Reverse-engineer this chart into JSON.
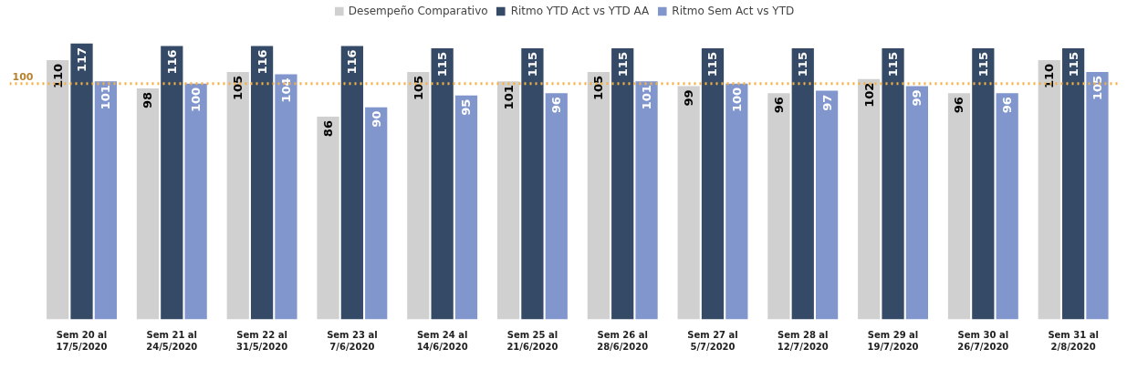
{
  "chart_data": {
    "type": "bar",
    "categories": [
      "Sem 20 al\n17/5/2020",
      "Sem 21 al\n24/5/2020",
      "Sem 22 al\n31/5/2020",
      "Sem 23 al\n7/6/2020",
      "Sem 24 al\n14/6/2020",
      "Sem 25 al\n21/6/2020",
      "Sem 26 al\n28/6/2020",
      "Sem 27 al\n5/7/2020",
      "Sem 28 al\n12/7/2020",
      "Sem 29 al\n19/7/2020",
      "Sem 30 al\n26/7/2020",
      "Sem 31 al\n2/8/2020"
    ],
    "series": [
      {
        "name": "Desempeño Comparativo",
        "color": "#d0d0d0",
        "values": [
          110,
          98,
          105,
          86,
          105,
          101,
          105,
          99,
          96,
          102,
          96,
          110
        ]
      },
      {
        "name": "Ritmo YTD Act vs YTD AA",
        "color": "#344a66",
        "values": [
          117,
          116,
          116,
          116,
          115,
          115,
          115,
          115,
          115,
          115,
          115,
          115
        ]
      },
      {
        "name": "Ritmo Sem Act vs YTD",
        "color": "#8096cc",
        "values": [
          101,
          100,
          104,
          90,
          95,
          96,
          101,
          100,
          97,
          99,
          96,
          105
        ]
      }
    ],
    "ref_lines": [
      {
        "axis": "y",
        "value": 100,
        "label": "100",
        "color": "#f5b041",
        "line_style": "dotted"
      }
    ],
    "data_labels": true,
    "legend": "top",
    "grid": false,
    "tick_labels": "x"
  }
}
